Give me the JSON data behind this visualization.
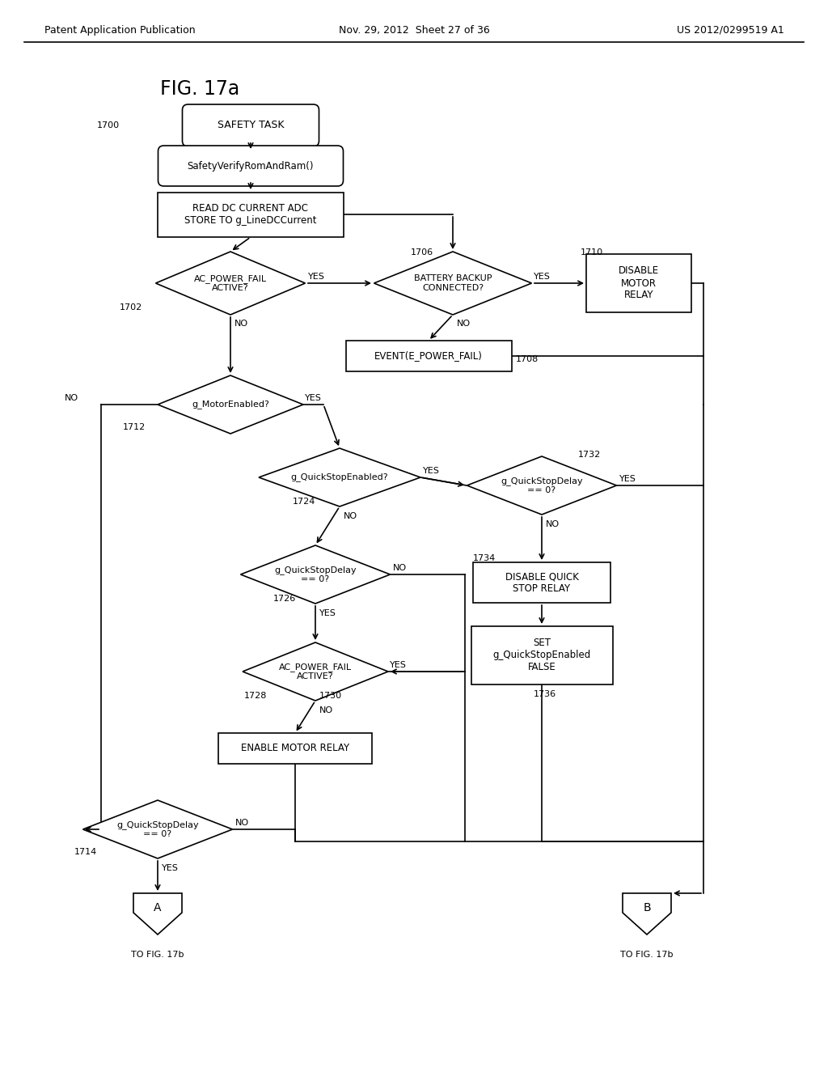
{
  "title": "FIG. 17a",
  "header_left": "Patent Application Publication",
  "header_center": "Nov. 29, 2012  Sheet 27 of 36",
  "header_right": "US 2012/0299519 A1",
  "bg_color": "#ffffff",
  "line_color": "#000000",
  "text_color": "#000000"
}
